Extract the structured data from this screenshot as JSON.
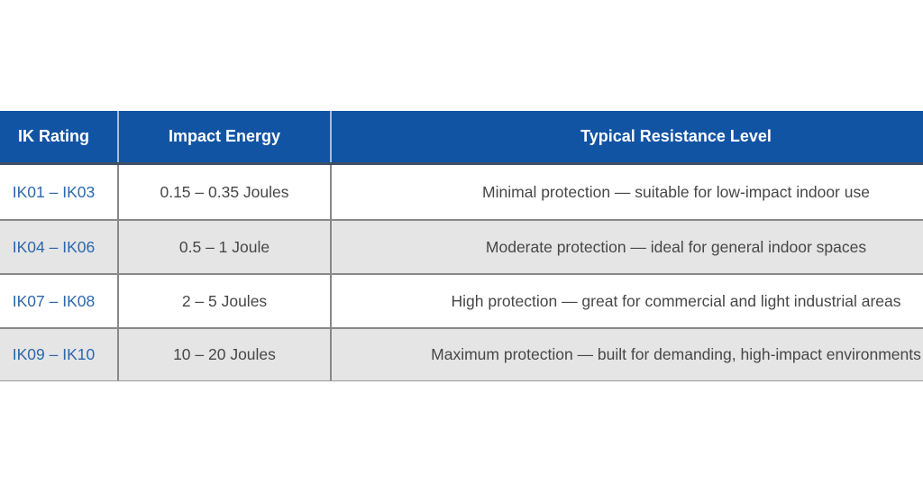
{
  "table": {
    "columns": [
      {
        "label": "IK Rating"
      },
      {
        "label": "Impact Energy"
      },
      {
        "label": "Typical Resistance Level"
      }
    ],
    "rows": [
      {
        "rating": "IK01 – IK03",
        "energy": "0.15 – 0.35 Joules",
        "resistance": "Minimal protection — suitable for low-impact indoor use"
      },
      {
        "rating": "IK04 – IK06",
        "energy": "0.5 – 1 Joule",
        "resistance": "Moderate protection — ideal for general indoor spaces"
      },
      {
        "rating": "IK07 – IK08",
        "energy": "2 – 5 Joules",
        "resistance": "High protection — great for commercial and light industrial areas"
      },
      {
        "rating": "IK09 – IK10",
        "energy": "10 – 20 Joules",
        "resistance": "Maximum protection — built for demanding, high-impact environments"
      }
    ],
    "colors": {
      "header_bg": "#1254A4",
      "header_text": "#FFFFFF",
      "rating_text": "#2A67AE",
      "body_text": "#474747",
      "row_bg": "#FFFFFF",
      "row_alt_bg": "#E5E5E6",
      "border": "#888888"
    }
  }
}
